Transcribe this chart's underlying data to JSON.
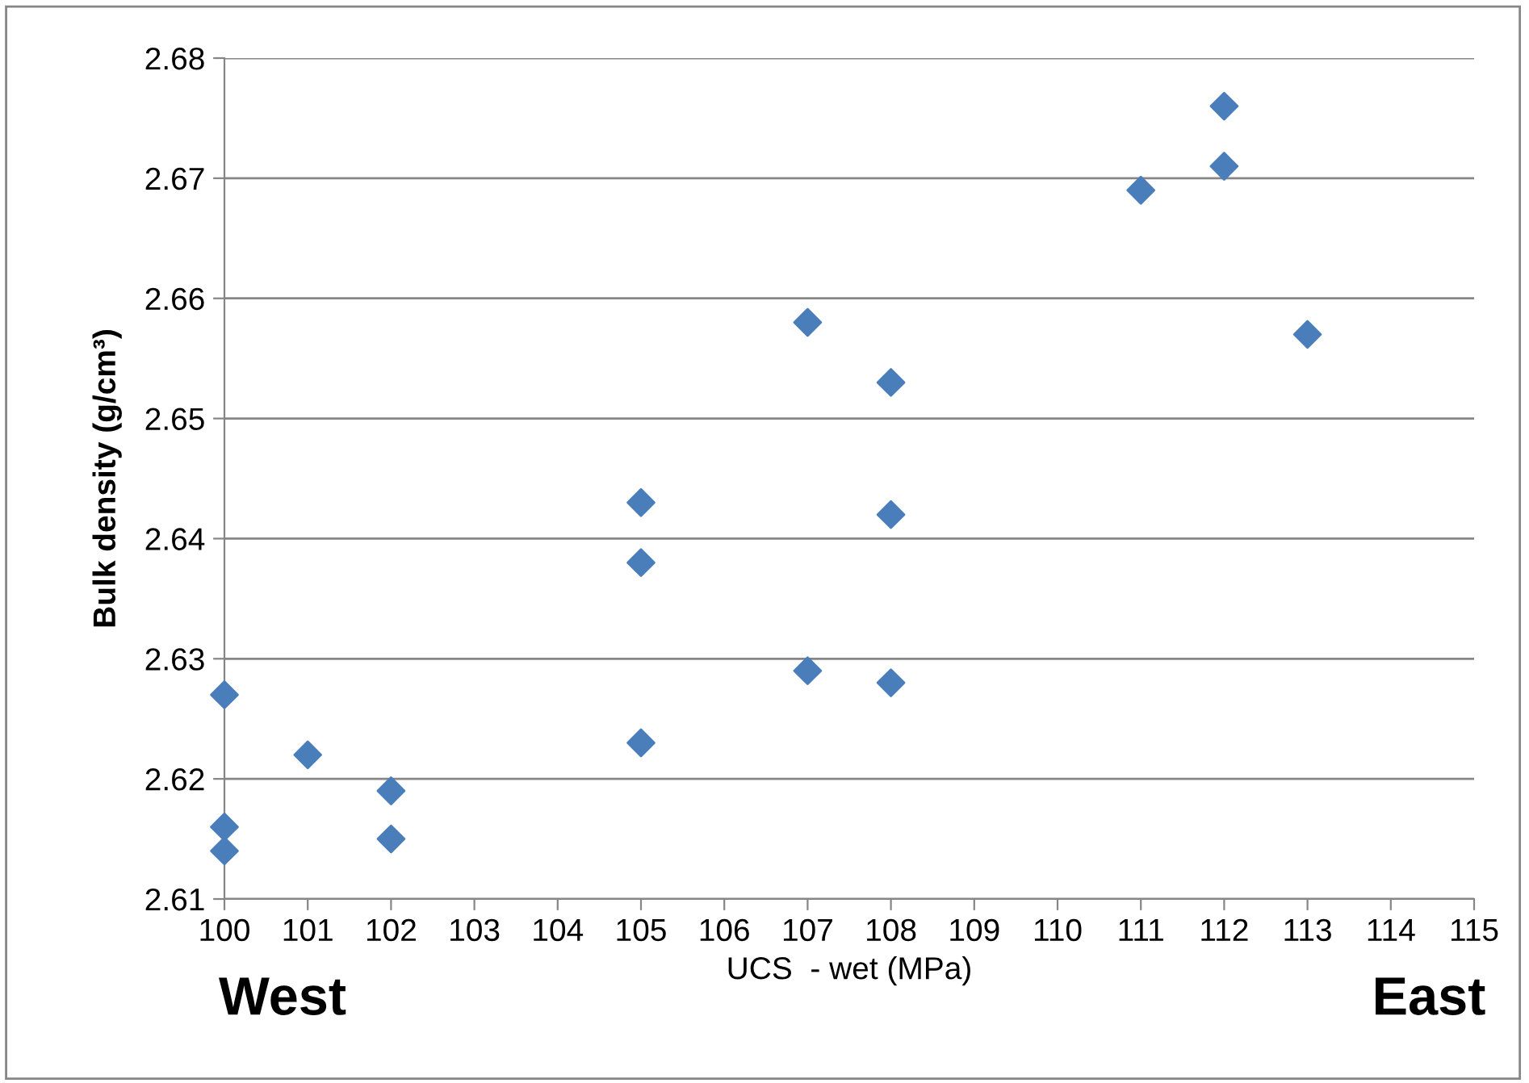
{
  "chart_data": {
    "type": "scatter",
    "xlabel": "UCS  - wet (MPa)",
    "ylabel": "Bulk density (g/cm³)",
    "x": [
      100,
      100,
      100,
      101,
      102,
      102,
      105,
      105,
      105,
      107,
      107,
      108,
      108,
      108,
      111,
      112,
      112,
      113
    ],
    "values": [
      2.627,
      2.616,
      2.614,
      2.622,
      2.619,
      2.615,
      2.643,
      2.638,
      2.623,
      2.658,
      2.629,
      2.653,
      2.642,
      2.628,
      2.669,
      2.676,
      2.671,
      2.657
    ],
    "color": "#4a7ebb",
    "marker": "diamond",
    "grid": "y",
    "xlim": [
      100,
      115
    ],
    "xticks": [
      100,
      101,
      102,
      103,
      104,
      105,
      106,
      107,
      108,
      109,
      110,
      111,
      112,
      113,
      114,
      115
    ],
    "ylim": [
      2.61,
      2.68
    ],
    "yticks": [
      2.61,
      2.62,
      2.63,
      2.64,
      2.65,
      2.66,
      2.67,
      2.68
    ],
    "annotations": [
      "West",
      "East"
    ]
  }
}
